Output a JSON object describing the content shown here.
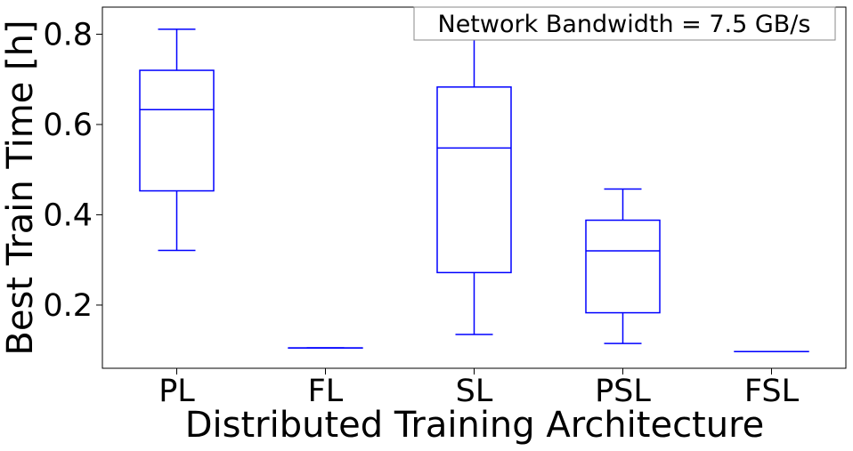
{
  "chart_data": {
    "type": "box",
    "xlabel": "Distributed Training Architecture",
    "ylabel": "Best Train Time [h]",
    "annotation": "Network Bandwidth = 7.5 GB/s",
    "ylim": [
      0.06,
      0.86
    ],
    "yticks": [
      0.2,
      0.4,
      0.6,
      0.8
    ],
    "ytick_labels": [
      "0.2",
      "0.4",
      "0.6",
      "0.8"
    ],
    "categories": [
      "PL",
      "FL",
      "SL",
      "PSL",
      "FSL"
    ],
    "boxes": [
      {
        "label": "PL",
        "whisker_low": 0.321,
        "q1": 0.453,
        "median": 0.633,
        "q3": 0.72,
        "whisker_high": 0.811
      },
      {
        "label": "FL",
        "whisker_low": 0.105,
        "q1": 0.105,
        "median": 0.105,
        "q3": 0.105,
        "whisker_high": 0.105
      },
      {
        "label": "SL",
        "whisker_low": 0.135,
        "q1": 0.272,
        "median": 0.548,
        "q3": 0.683,
        "whisker_high": 0.825
      },
      {
        "label": "PSL",
        "whisker_low": 0.115,
        "q1": 0.183,
        "median": 0.32,
        "q3": 0.388,
        "whisker_high": 0.457
      },
      {
        "label": "FSL",
        "whisker_low": 0.097,
        "q1": 0.097,
        "median": 0.097,
        "q3": 0.097,
        "whisker_high": 0.097
      }
    ],
    "box_color": "#0000ff",
    "grid": false,
    "legend_placement": "top-right"
  }
}
